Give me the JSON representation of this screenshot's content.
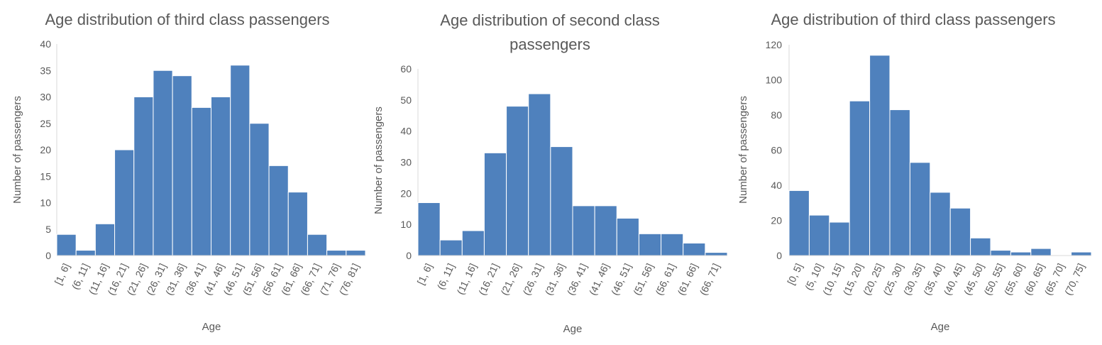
{
  "colors": {
    "bar": "#4f81bd",
    "bar_edge": "#ffffff",
    "axis": "#d9d9d9",
    "text": "#595959"
  },
  "chart_data": [
    {
      "type": "bar",
      "title": "Age distribution of third class passengers",
      "xlabel": "Age",
      "ylabel": "Number of passengers",
      "ylim": [
        0,
        40
      ],
      "yticks": [
        0,
        5,
        10,
        15,
        20,
        25,
        30,
        35,
        40
      ],
      "grid": false,
      "categories": [
        "[1, 6]",
        "(6, 11]",
        "(11, 16]",
        "(16, 21]",
        "(21, 26]",
        "(26, 31]",
        "(31, 36]",
        "(36, 41]",
        "(41, 46]",
        "(46, 51]",
        "(51, 56]",
        "(56, 61]",
        "(61, 66]",
        "(66, 71]",
        "(71, 76]",
        "(76, 81]"
      ],
      "values": [
        4,
        1,
        6,
        20,
        30,
        35,
        34,
        28,
        30,
        36,
        25,
        17,
        12,
        4,
        1,
        1
      ]
    },
    {
      "type": "bar",
      "title": "Age distribution of second class passengers",
      "xlabel": "Age",
      "ylabel": "Number of passengers",
      "ylim": [
        0,
        60
      ],
      "yticks": [
        0,
        10,
        20,
        30,
        40,
        50,
        60
      ],
      "grid": false,
      "categories": [
        "[1, 6]",
        "(6, 11]",
        "(11, 16]",
        "(16, 21]",
        "(21, 26]",
        "(26, 31]",
        "(31, 36]",
        "(36, 41]",
        "(41, 46]",
        "(46, 51]",
        "(51, 56]",
        "(56, 61]",
        "(61, 66]",
        "(66, 71]"
      ],
      "values": [
        17,
        5,
        8,
        33,
        48,
        52,
        35,
        16,
        16,
        12,
        7,
        7,
        4,
        1
      ]
    },
    {
      "type": "bar",
      "title": "Age distribution of third class passengers",
      "xlabel": "Age",
      "ylabel": "Number of passengers",
      "ylim": [
        0,
        120
      ],
      "yticks": [
        0,
        20,
        40,
        60,
        80,
        100,
        120
      ],
      "grid": false,
      "categories": [
        "[0, 5]",
        "(5, 10]",
        "(10, 15]",
        "(15, 20]",
        "(20, 25]",
        "(25, 30]",
        "(30, 35]",
        "(35, 40]",
        "(40, 45]",
        "(45, 50]",
        "(50, 55]",
        "(55, 60]",
        "(60, 65]",
        "(65, 70]",
        "(70, 75]"
      ],
      "values": [
        37,
        23,
        19,
        88,
        114,
        83,
        53,
        36,
        27,
        10,
        3,
        2,
        4,
        0,
        2
      ]
    }
  ]
}
